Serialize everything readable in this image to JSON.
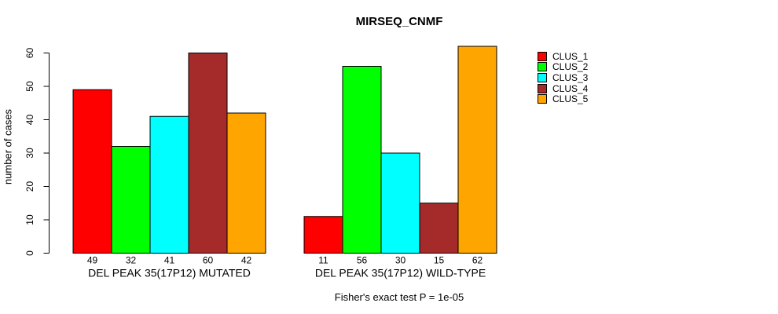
{
  "chart_data": {
    "type": "bar",
    "title": "MIRSEQ_CNMF",
    "ylabel": "number of cases",
    "xlabel": "",
    "ylim": [
      0,
      60
    ],
    "yticks": [
      0,
      10,
      20,
      30,
      40,
      50,
      60
    ],
    "grid": false,
    "legend_position": "right",
    "bar_value_labels": true,
    "bar_border_color": "#000000",
    "series_names": [
      "CLUS_1",
      "CLUS_2",
      "CLUS_3",
      "CLUS_4",
      "CLUS_5"
    ],
    "series_colors": [
      "#FF0000",
      "#00FF00",
      "#00FFFF",
      "#A52A2A",
      "#FFA500"
    ],
    "groups": [
      {
        "label": "DEL PEAK 35(17P12) MUTATED",
        "values": [
          49,
          32,
          41,
          60,
          42
        ]
      },
      {
        "label": "DEL PEAK 35(17P12) WILD-TYPE",
        "values": [
          11,
          56,
          30,
          15,
          62
        ]
      }
    ],
    "annotation": "Fisher's exact test P = 1e-05"
  }
}
